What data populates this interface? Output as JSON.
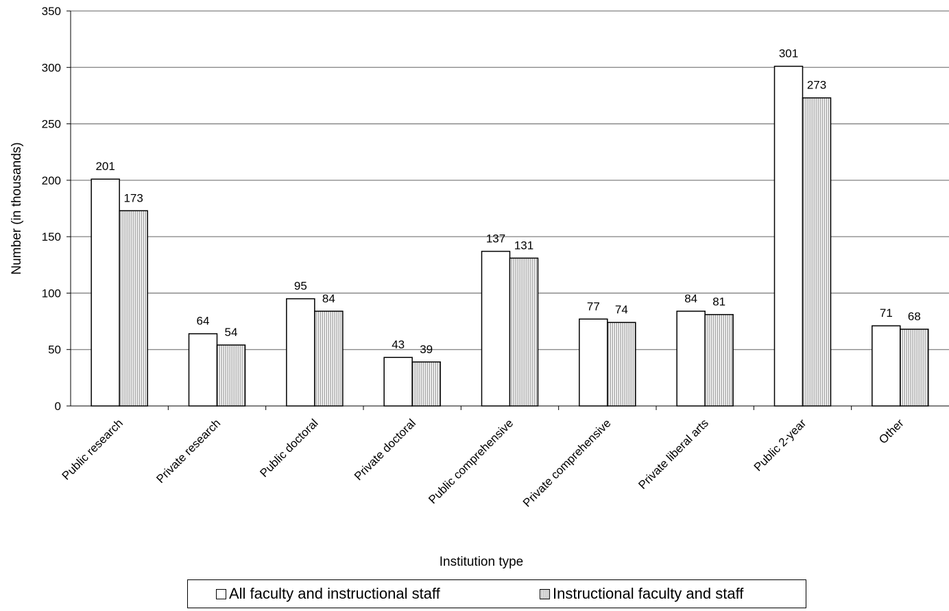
{
  "chart_data": {
    "type": "bar",
    "categories": [
      "Public research",
      "Private research",
      "Public doctoral",
      "Private doctoral",
      "Public comprehensive",
      "Private comprehensive",
      "Private liberal arts",
      "Public 2-year",
      "Other"
    ],
    "series": [
      {
        "name": "All faculty and instructional staff",
        "values": [
          201,
          64,
          95,
          43,
          137,
          77,
          84,
          301,
          71
        ],
        "fill": "white"
      },
      {
        "name": "Instructional faculty and staff",
        "values": [
          173,
          54,
          84,
          39,
          131,
          74,
          81,
          273,
          68
        ],
        "fill": "vertical-stripes"
      }
    ],
    "title": "",
    "xlabel": "Institution type",
    "ylabel": "Number (in thousands)",
    "ylim": [
      0,
      350
    ],
    "yticks": [
      0,
      50,
      100,
      150,
      200,
      250,
      300,
      350
    ],
    "grid": true,
    "legend_position": "bottom",
    "colors": {
      "stripe_dark": "#a8a8a8",
      "stripe_light": "#ffffff",
      "grid": "#808080",
      "axis": "#000000"
    }
  },
  "legend": {
    "items": [
      {
        "label": "All faculty and instructional staff"
      },
      {
        "label": "Instructional faculty and staff"
      }
    ]
  }
}
